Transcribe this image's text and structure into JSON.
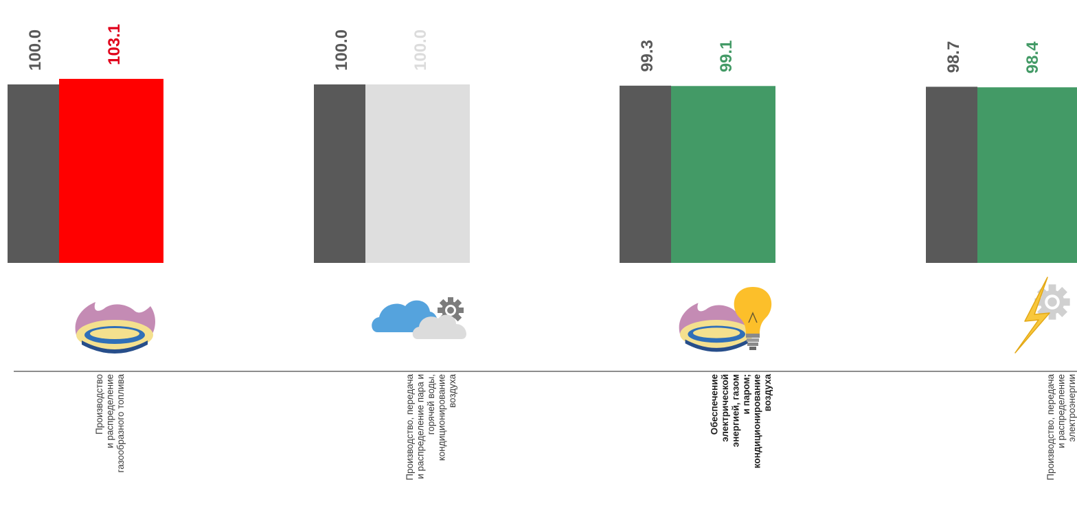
{
  "chart_data": {
    "type": "bar",
    "title": "",
    "xlabel": "",
    "ylabel": "",
    "grid": false,
    "legend": "none",
    "baseline_color": "#8c8c8c",
    "groups": [
      {
        "category_lines": [
          "Производство",
          "и распределение",
          "газообразного топлива"
        ],
        "bold": false,
        "icon": "gas-burner-icon",
        "bars": [
          {
            "value": 100.0,
            "label": "100.0",
            "color": "#595959",
            "label_color": "#595959"
          },
          {
            "value": 103.1,
            "label": "103.1",
            "color": "#ff0000",
            "label_color": "#e0001a"
          }
        ]
      },
      {
        "category_lines": [
          "Производство, передача",
          "и распределение пара и",
          "горячей воды,",
          "кондиционирование",
          "воздуха"
        ],
        "bold": false,
        "icon": "cloud-gear-icon",
        "bars": [
          {
            "value": 100.0,
            "label": "100.0",
            "color": "#595959",
            "label_color": "#595959"
          },
          {
            "value": 100.0,
            "label": "100.0",
            "color": "#dedede",
            "label_color": "#dcdcdc"
          }
        ]
      },
      {
        "category_lines": [
          "Обеспечение",
          "электрической",
          "энергией, газом",
          "и паром;",
          "кондиционирование",
          "воздуха"
        ],
        "bold": true,
        "icon": "gas-burner-lightbulb-icon",
        "bars": [
          {
            "value": 99.3,
            "label": "99.3",
            "color": "#595959",
            "label_color": "#595959"
          },
          {
            "value": 99.1,
            "label": "99.1",
            "color": "#439a66",
            "label_color": "#439a66"
          }
        ]
      },
      {
        "category_lines": [
          "Производство, передача",
          "и распределение",
          "электроэнергии"
        ],
        "bold": false,
        "icon": "lightning-gear-icon",
        "bars": [
          {
            "value": 98.7,
            "label": "98.7",
            "color": "#595959",
            "label_color": "#595959"
          },
          {
            "value": 98.4,
            "label": "98.4",
            "color": "#439a66",
            "label_color": "#439a66"
          }
        ]
      }
    ]
  }
}
